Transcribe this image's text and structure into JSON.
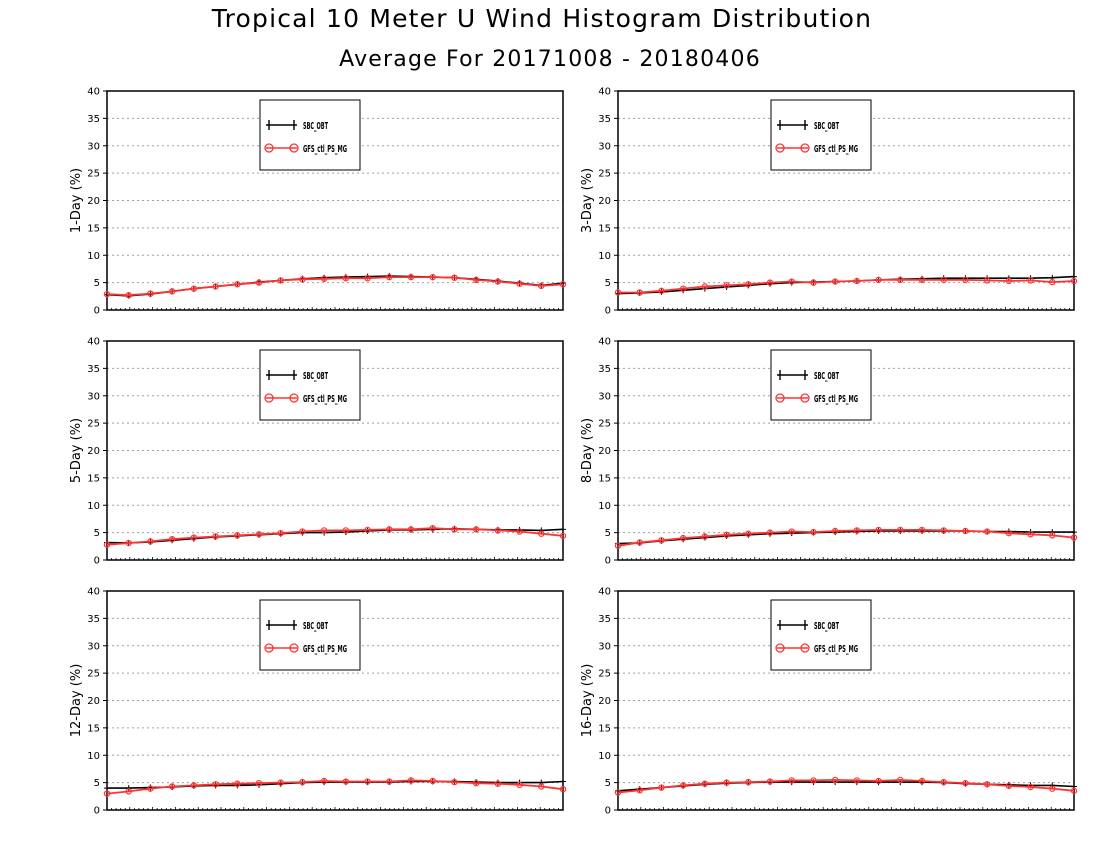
{
  "title": "Tropical 10 Meter U Wind Histogram Distribution",
  "subtitle": "Average For 20171008 - 20180406",
  "colors": {
    "series1": "#000000",
    "series2": "#ff3333",
    "grid": "#a0a0a0"
  },
  "chart_data": [
    {
      "type": "line",
      "ylabel": "1-Day (%)",
      "ylim": [
        0,
        40
      ],
      "yticks": [
        "0",
        "5",
        "10",
        "15",
        "20",
        "25",
        "30",
        "35",
        "40"
      ],
      "grid": "dotted",
      "legend": "top-left",
      "x": [
        1,
        2,
        3,
        4,
        5,
        6,
        7,
        8,
        9,
        10,
        11,
        12,
        13,
        14,
        15,
        16,
        17,
        18,
        19,
        20,
        21,
        22
      ],
      "series": [
        {
          "name": "SBC_OBT",
          "values": [
            2.8,
            2.6,
            2.9,
            3.4,
            3.9,
            4.3,
            4.7,
            5.1,
            5.4,
            5.7,
            5.9,
            6.0,
            6.1,
            6.2,
            6.1,
            6.0,
            5.9,
            5.6,
            5.3,
            4.9,
            4.5,
            4.9
          ]
        },
        {
          "name": "GFS_ctl_PS_MG",
          "values": [
            2.9,
            2.7,
            3.0,
            3.4,
            3.9,
            4.3,
            4.7,
            5.0,
            5.4,
            5.6,
            5.7,
            5.8,
            5.8,
            6.0,
            6.0,
            6.0,
            5.9,
            5.5,
            5.2,
            4.8,
            4.4,
            4.7
          ]
        }
      ]
    },
    {
      "type": "line",
      "ylabel": "3-Day (%)",
      "ylim": [
        0,
        40
      ],
      "yticks": [
        "0",
        "5",
        "10",
        "15",
        "20",
        "25",
        "30",
        "35",
        "40"
      ],
      "grid": "dotted",
      "legend": "top-left",
      "x": [
        1,
        2,
        3,
        4,
        5,
        6,
        7,
        8,
        9,
        10,
        11,
        12,
        13,
        14,
        15,
        16,
        17,
        18,
        19,
        20,
        21,
        22
      ],
      "series": [
        {
          "name": "SBC_OBT",
          "values": [
            3.0,
            3.1,
            3.3,
            3.6,
            3.9,
            4.2,
            4.5,
            4.8,
            5.0,
            5.1,
            5.2,
            5.3,
            5.5,
            5.6,
            5.7,
            5.8,
            5.8,
            5.8,
            5.8,
            5.8,
            5.9,
            6.1
          ]
        },
        {
          "name": "GFS_ctl_PS_MG",
          "values": [
            3.2,
            3.2,
            3.5,
            3.9,
            4.3,
            4.5,
            4.7,
            5.0,
            5.2,
            5.0,
            5.2,
            5.3,
            5.5,
            5.5,
            5.5,
            5.5,
            5.5,
            5.4,
            5.3,
            5.4,
            5.1,
            5.3
          ]
        }
      ]
    },
    {
      "type": "line",
      "ylabel": "5-Day (%)",
      "ylim": [
        0,
        40
      ],
      "yticks": [
        "0",
        "5",
        "10",
        "15",
        "20",
        "25",
        "30",
        "35",
        "40"
      ],
      "grid": "dotted",
      "legend": "top-left",
      "x": [
        1,
        2,
        3,
        4,
        5,
        6,
        7,
        8,
        9,
        10,
        11,
        12,
        13,
        14,
        15,
        16,
        17,
        18,
        19,
        20,
        21,
        22
      ],
      "series": [
        {
          "name": "SBC_OBT",
          "values": [
            3.2,
            3.1,
            3.3,
            3.6,
            3.9,
            4.2,
            4.4,
            4.6,
            4.8,
            5.0,
            5.0,
            5.1,
            5.3,
            5.5,
            5.5,
            5.6,
            5.7,
            5.6,
            5.5,
            5.5,
            5.4,
            5.6
          ]
        },
        {
          "name": "GFS_ctl_PS_MG",
          "values": [
            2.8,
            3.1,
            3.4,
            3.8,
            4.1,
            4.3,
            4.5,
            4.7,
            4.9,
            5.2,
            5.4,
            5.4,
            5.5,
            5.6,
            5.6,
            5.8,
            5.6,
            5.6,
            5.4,
            5.2,
            4.8,
            4.4
          ]
        }
      ]
    },
    {
      "type": "line",
      "ylabel": "8-Day (%)",
      "ylim": [
        0,
        40
      ],
      "yticks": [
        "0",
        "5",
        "10",
        "15",
        "20",
        "25",
        "30",
        "35",
        "40"
      ],
      "grid": "dotted",
      "legend": "top-left",
      "x": [
        1,
        2,
        3,
        4,
        5,
        6,
        7,
        8,
        9,
        10,
        11,
        12,
        13,
        14,
        15,
        16,
        17,
        18,
        19,
        20,
        21,
        22
      ],
      "series": [
        {
          "name": "SBC_OBT",
          "values": [
            3.0,
            3.1,
            3.5,
            3.8,
            4.1,
            4.4,
            4.6,
            4.8,
            4.9,
            5.0,
            5.1,
            5.2,
            5.3,
            5.3,
            5.3,
            5.3,
            5.3,
            5.2,
            5.2,
            5.1,
            5.1,
            5.1
          ]
        },
        {
          "name": "GFS_ctl_PS_MG",
          "values": [
            2.6,
            3.2,
            3.6,
            4.0,
            4.3,
            4.6,
            4.8,
            5.0,
            5.2,
            5.1,
            5.3,
            5.4,
            5.5,
            5.5,
            5.5,
            5.4,
            5.3,
            5.2,
            4.9,
            4.7,
            4.5,
            4.1
          ]
        }
      ]
    },
    {
      "type": "line",
      "ylabel": "12-Day (%)",
      "ylim": [
        0,
        40
      ],
      "yticks": [
        "0",
        "5",
        "10",
        "15",
        "20",
        "25",
        "30",
        "35",
        "40"
      ],
      "grid": "dotted",
      "legend": "top-left",
      "x": [
        1,
        2,
        3,
        4,
        5,
        6,
        7,
        8,
        9,
        10,
        11,
        12,
        13,
        14,
        15,
        16,
        17,
        18,
        19,
        20,
        21,
        22
      ],
      "series": [
        {
          "name": "SBC_OBT",
          "values": [
            4.0,
            4.0,
            4.1,
            4.2,
            4.4,
            4.5,
            4.5,
            4.6,
            4.8,
            5.0,
            5.1,
            5.1,
            5.1,
            5.1,
            5.2,
            5.2,
            5.2,
            5.1,
            5.0,
            5.0,
            5.0,
            5.2
          ]
        },
        {
          "name": "GFS_ctl_PS_MG",
          "values": [
            3.0,
            3.4,
            3.9,
            4.3,
            4.5,
            4.7,
            4.8,
            4.9,
            5.0,
            5.1,
            5.3,
            5.2,
            5.2,
            5.2,
            5.4,
            5.3,
            5.1,
            4.9,
            4.8,
            4.6,
            4.3,
            3.8
          ]
        }
      ]
    },
    {
      "type": "line",
      "ylabel": "16-Day (%)",
      "ylim": [
        0,
        40
      ],
      "yticks": [
        "0",
        "5",
        "10",
        "15",
        "20",
        "25",
        "30",
        "35",
        "40"
      ],
      "grid": "dotted",
      "legend": "top-left",
      "x": [
        1,
        2,
        3,
        4,
        5,
        6,
        7,
        8,
        9,
        10,
        11,
        12,
        13,
        14,
        15,
        16,
        17,
        18,
        19,
        20,
        21,
        22
      ],
      "series": [
        {
          "name": "SBC_OBT",
          "values": [
            3.5,
            3.8,
            4.1,
            4.4,
            4.7,
            4.9,
            5.0,
            5.1,
            5.1,
            5.1,
            5.1,
            5.1,
            5.1,
            5.1,
            5.1,
            5.0,
            4.8,
            4.7,
            4.6,
            4.5,
            4.5,
            4.3
          ]
        },
        {
          "name": "GFS_ctl_PS_MG",
          "values": [
            3.2,
            3.6,
            4.1,
            4.5,
            4.8,
            5.0,
            5.1,
            5.2,
            5.4,
            5.4,
            5.5,
            5.4,
            5.3,
            5.5,
            5.3,
            5.1,
            4.9,
            4.7,
            4.4,
            4.2,
            3.9,
            3.5
          ]
        }
      ]
    }
  ]
}
